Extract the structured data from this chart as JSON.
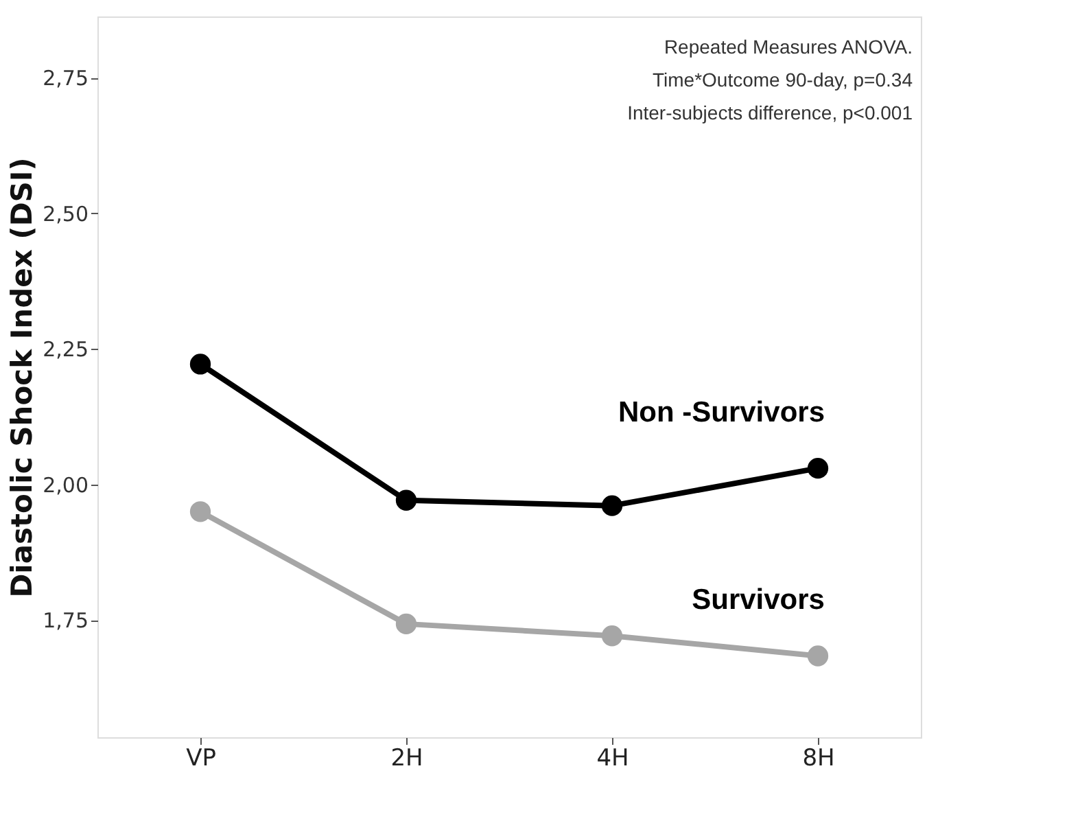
{
  "chart_data": {
    "type": "line",
    "ylabel": "Diastolic Shock Index  (DSI)",
    "categories": [
      "VP",
      "2H",
      "4H",
      "8H"
    ],
    "series": [
      {
        "name": "Non -Survivors",
        "color": "#000000",
        "values": [
          2.222,
          1.971,
          1.961,
          2.03
        ]
      },
      {
        "name": "Survivors",
        "color": "#a6a6a6",
        "values": [
          1.95,
          1.743,
          1.721,
          1.684
        ]
      }
    ],
    "ylim": [
      1.534,
      2.863
    ],
    "yticks": [
      {
        "value": 1.75,
        "label": "1,75"
      },
      {
        "value": 2.0,
        "label": "2,00"
      },
      {
        "value": 2.25,
        "label": "2,25"
      },
      {
        "value": 2.5,
        "label": "2,50"
      },
      {
        "value": 2.75,
        "label": "2,75"
      }
    ],
    "annotations": [
      "Repeated Measures ANOVA.",
      "Time*Outcome 90-day, p=0.34",
      "Inter-subjects difference, p<0.001"
    ],
    "marker": "circle",
    "line_style": "solid",
    "grid": false,
    "legend": false
  }
}
